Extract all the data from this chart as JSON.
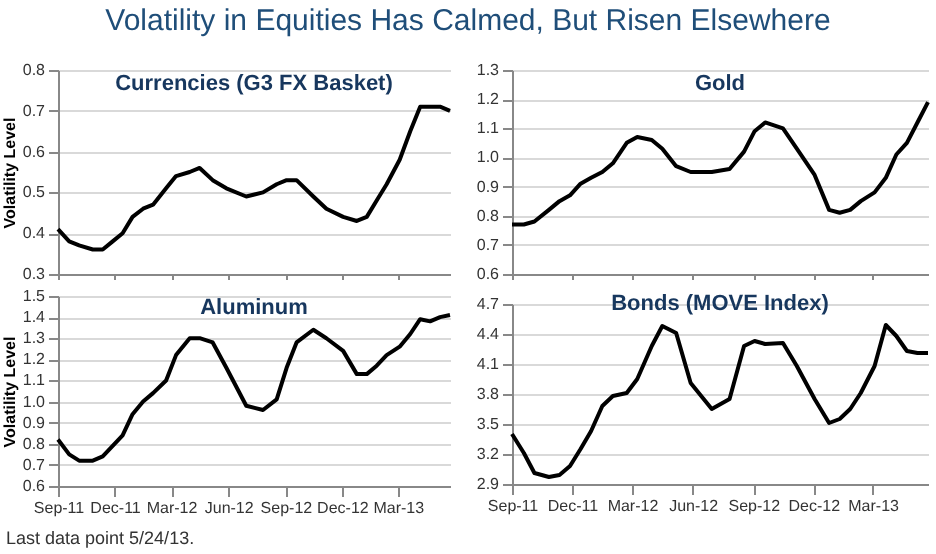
{
  "chart_data": [
    {
      "type": "line",
      "title": "Currencies (G3 FX Basket)",
      "ylabel": "Volatility Level",
      "annotations": [
        "Volatility in Equities Has Calmed, But Risen Elsewhere"
      ],
      "color": "#000000",
      "grid": "y",
      "tick_labels": "y",
      "x": [
        "2011-09-01",
        "2011-09-19",
        "2011-10-05",
        "2011-10-27",
        "2011-11-12",
        "2011-11-28",
        "2011-12-14",
        "2011-12-30",
        "2012-01-16",
        "2012-02-01",
        "2012-02-22",
        "2012-03-09",
        "2012-03-31",
        "2012-04-16",
        "2012-05-07",
        "2012-05-29",
        "2012-06-30",
        "2012-07-27",
        "2012-08-18",
        "2012-09-03",
        "2012-09-19",
        "2012-10-16",
        "2012-11-06",
        "2012-12-03",
        "2012-12-25",
        "2013-01-10",
        "2013-01-26",
        "2013-02-11",
        "2013-03-04",
        "2013-03-21",
        "2013-04-06",
        "2013-04-22",
        "2013-05-08",
        "2013-05-24"
      ],
      "values": [
        0.41,
        0.38,
        0.37,
        0.36,
        0.36,
        0.38,
        0.4,
        0.44,
        0.46,
        0.47,
        0.51,
        0.54,
        0.55,
        0.56,
        0.53,
        0.51,
        0.49,
        0.5,
        0.52,
        0.53,
        0.53,
        0.49,
        0.46,
        0.44,
        0.43,
        0.44,
        0.48,
        0.52,
        0.58,
        0.65,
        0.71,
        0.71,
        0.71,
        0.7
      ],
      "xlim": [
        "2011-09-01",
        "2013-05-24"
      ],
      "xticks": [
        {
          "value": "2011-09-01",
          "label": null
        },
        {
          "value": "2011-12-01",
          "label": null
        },
        {
          "value": "2012-03-01",
          "label": null
        },
        {
          "value": "2012-06-01",
          "label": null
        },
        {
          "value": "2012-09-01",
          "label": null
        },
        {
          "value": "2012-12-01",
          "label": null
        },
        {
          "value": "2013-03-01",
          "label": null
        }
      ],
      "ylim": [
        0.3,
        0.8
      ],
      "yticks": [
        0.3,
        0.4,
        0.5,
        0.6,
        0.7,
        0.8
      ]
    },
    {
      "type": "line",
      "title": "Gold",
      "color": "#000000",
      "grid": "y",
      "tick_labels": "y",
      "x": [
        "2011-09-01",
        "2011-09-19",
        "2011-10-05",
        "2011-10-27",
        "2011-11-12",
        "2011-11-28",
        "2011-12-14",
        "2011-12-30",
        "2012-01-16",
        "2012-02-01",
        "2012-02-22",
        "2012-03-09",
        "2012-03-31",
        "2012-04-16",
        "2012-05-07",
        "2012-05-29",
        "2012-06-30",
        "2012-07-27",
        "2012-08-18",
        "2012-09-03",
        "2012-09-19",
        "2012-10-16",
        "2012-11-06",
        "2012-12-03",
        "2012-12-25",
        "2013-01-10",
        "2013-01-26",
        "2013-02-11",
        "2013-03-04",
        "2013-03-21",
        "2013-04-06",
        "2013-04-22",
        "2013-05-08",
        "2013-05-24"
      ],
      "values": [
        0.77,
        0.77,
        0.78,
        0.82,
        0.85,
        0.87,
        0.91,
        0.93,
        0.95,
        0.98,
        1.05,
        1.07,
        1.06,
        1.03,
        0.97,
        0.95,
        0.95,
        0.96,
        1.02,
        1.09,
        1.12,
        1.1,
        1.03,
        0.94,
        0.82,
        0.81,
        0.82,
        0.85,
        0.88,
        0.93,
        1.01,
        1.05,
        1.12,
        1.19
      ],
      "xlim": [
        "2011-09-01",
        "2013-05-24"
      ],
      "xticks": [
        {
          "value": "2011-09-01",
          "label": null
        },
        {
          "value": "2011-12-01",
          "label": null
        },
        {
          "value": "2012-03-01",
          "label": null
        },
        {
          "value": "2012-06-01",
          "label": null
        },
        {
          "value": "2012-09-01",
          "label": null
        },
        {
          "value": "2012-12-01",
          "label": null
        },
        {
          "value": "2013-03-01",
          "label": null
        }
      ],
      "ylim": [
        0.6,
        1.3
      ],
      "yticks": [
        0.6,
        0.7,
        0.8,
        0.9,
        {
          "value": 1,
          "label": "1.0"
        },
        1.1,
        1.2,
        1.3
      ]
    },
    {
      "type": "line",
      "title": "Aluminum",
      "ylabel": "Volatility Level",
      "annotations": [
        "Last data point 5/24/13."
      ],
      "color": "#000000",
      "grid": "y",
      "x": [
        "2011-09-01",
        "2011-09-19",
        "2011-10-05",
        "2011-10-27",
        "2011-11-12",
        "2011-11-28",
        "2011-12-14",
        "2011-12-30",
        "2012-01-16",
        "2012-02-01",
        "2012-02-22",
        "2012-03-09",
        "2012-03-31",
        "2012-04-16",
        "2012-05-07",
        "2012-05-29",
        "2012-06-30",
        "2012-07-27",
        "2012-08-18",
        "2012-09-03",
        "2012-09-19",
        "2012-10-16",
        "2012-11-06",
        "2012-12-03",
        "2012-12-25",
        "2013-01-10",
        "2013-01-26",
        "2013-02-11",
        "2013-03-04",
        "2013-03-21",
        "2013-04-06",
        "2013-04-22",
        "2013-05-08",
        "2013-05-24"
      ],
      "values": [
        0.82,
        0.75,
        0.72,
        0.72,
        0.74,
        0.79,
        0.84,
        0.94,
        1,
        1.04,
        1.1,
        1.22,
        1.3,
        1.3,
        1.28,
        1.16,
        0.98,
        0.96,
        1.01,
        1.16,
        1.28,
        1.34,
        1.3,
        1.24,
        1.13,
        1.13,
        1.17,
        1.22,
        1.26,
        1.32,
        1.39,
        1.38,
        1.4,
        1.41
      ],
      "xlim": [
        "2011-09-01",
        "2013-05-24"
      ],
      "xticks": [
        {
          "value": "2011-09-01",
          "label": "Sep-11"
        },
        {
          "value": "2011-12-01",
          "label": "Dec-11"
        },
        {
          "value": "2012-03-01",
          "label": "Mar-12"
        },
        {
          "value": "2012-06-01",
          "label": "Jun-12"
        },
        {
          "value": "2012-09-01",
          "label": "Sep-12"
        },
        {
          "value": "2012-12-01",
          "label": "Dec-12"
        },
        {
          "value": "2013-03-01",
          "label": "Mar-13"
        }
      ],
      "ylim": [
        0.6,
        1.5
      ],
      "yticks": [
        0.6,
        0.7,
        0.8,
        0.9,
        {
          "value": 1,
          "label": "1.0"
        },
        1.1,
        1.2,
        1.3,
        1.4,
        1.5
      ]
    },
    {
      "type": "line",
      "title": "Bonds (MOVE Index)",
      "color": "#000000",
      "grid": "y",
      "x": [
        "2011-09-01",
        "2011-09-19",
        "2011-10-05",
        "2011-10-27",
        "2011-11-12",
        "2011-11-28",
        "2011-12-14",
        "2011-12-30",
        "2012-01-16",
        "2012-02-01",
        "2012-02-22",
        "2012-03-09",
        "2012-03-31",
        "2012-04-16",
        "2012-05-07",
        "2012-05-29",
        "2012-06-30",
        "2012-07-27",
        "2012-08-18",
        "2012-09-03",
        "2012-09-19",
        "2012-10-16",
        "2012-11-06",
        "2012-12-03",
        "2012-12-25",
        "2013-01-10",
        "2013-01-26",
        "2013-02-11",
        "2013-03-04",
        "2013-03-21",
        "2013-04-06",
        "2013-04-22",
        "2013-05-08",
        "2013-05-24"
      ],
      "values": [
        3.4,
        3.21,
        3.01,
        2.97,
        2.99,
        3.08,
        3.25,
        3.43,
        3.68,
        3.78,
        3.81,
        3.95,
        4.28,
        4.48,
        4.41,
        3.91,
        3.65,
        3.75,
        4.28,
        4.33,
        4.3,
        4.31,
        4.08,
        3.75,
        3.51,
        3.55,
        3.65,
        3.81,
        4.08,
        4.49,
        4.38,
        4.23,
        4.21,
        4.21
      ],
      "xlim": [
        "2011-09-01",
        "2013-05-24"
      ],
      "xticks": [
        {
          "value": "2011-09-01",
          "label": "Sep-11"
        },
        {
          "value": "2011-12-01",
          "label": "Dec-11"
        },
        {
          "value": "2012-03-01",
          "label": "Mar-12"
        },
        {
          "value": "2012-06-01",
          "label": "Jun-12"
        },
        {
          "value": "2012-09-01",
          "label": "Sep-12"
        },
        {
          "value": "2012-12-01",
          "label": "Dec-12"
        },
        {
          "value": "2013-03-01",
          "label": "Mar-13"
        }
      ],
      "ylim": [
        2.9,
        4.7
      ],
      "yticks": [
        2.9,
        3.2,
        3.5,
        3.8,
        4.1,
        4.4,
        4.7
      ]
    }
  ]
}
